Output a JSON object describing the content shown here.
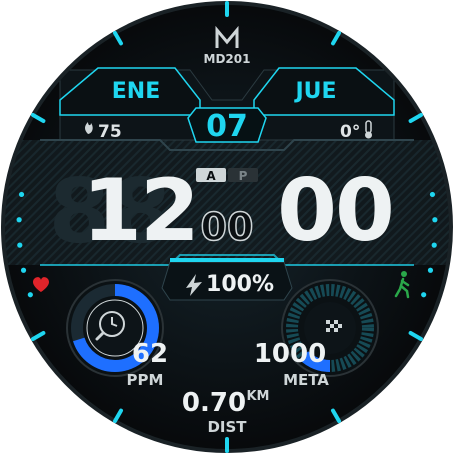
{
  "brand": {
    "logo_letter": "M",
    "model": "MD201"
  },
  "date": {
    "month": "ENE",
    "weekday": "JUE",
    "day": "07"
  },
  "weather": {
    "uv_value": "75",
    "temperature": "0°"
  },
  "time": {
    "hours": "12",
    "minutes": "00",
    "seconds": "00",
    "ghost_hours": "88",
    "am": "A",
    "pm": "P"
  },
  "battery": {
    "percent_text": "100%",
    "level": 1.0
  },
  "heart": {
    "value": "62",
    "unit": "PPM",
    "ring_fraction": 0.7
  },
  "steps": {
    "value": "1000",
    "unit": "META",
    "ring_fraction": 0.12
  },
  "distance": {
    "value": "0.70",
    "unit": "KM",
    "label": "DIST"
  },
  "icons": {
    "left": "heart-icon",
    "right": "walking-icon",
    "heart_ring_center": "clock-icon",
    "steps_ring_center": "checkered-flag-icon",
    "uv": "flame-icon",
    "thermometer": "thermometer-icon",
    "battery": "bolt-icon"
  },
  "colors": {
    "accent": "#1fd6f0",
    "heart": "#e0242a",
    "steps": "#2aa84a",
    "ring_blue": "#1e6fff",
    "background": "#0b0f12"
  }
}
